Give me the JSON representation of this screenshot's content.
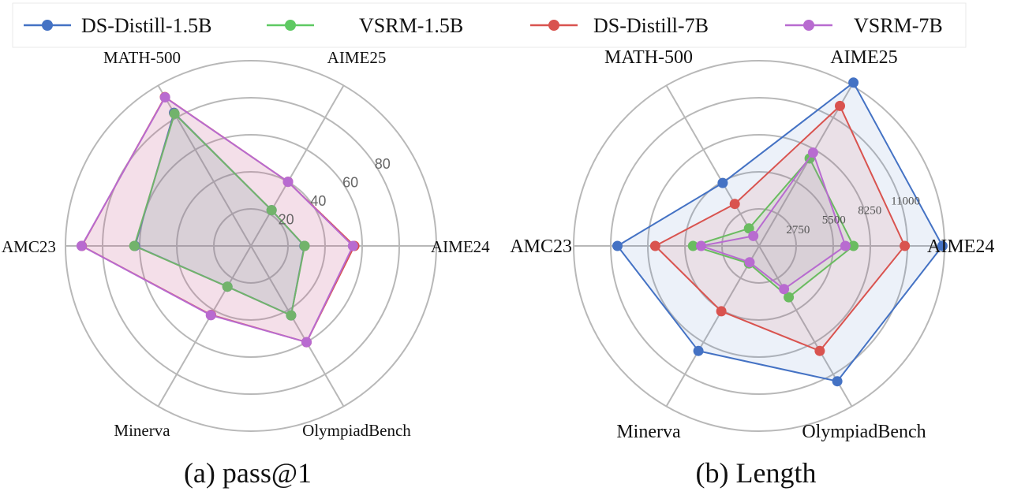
{
  "legend": [
    {
      "name": "DS-Distill-1.5B",
      "color": "#4472c4"
    },
    {
      "name": "VSRM-1.5B",
      "color": "#5ec962"
    },
    {
      "name": "DS-Distill-7B",
      "color": "#d9534f"
    },
    {
      "name": "VSRM-7B",
      "color": "#b86bd0"
    }
  ],
  "chart_data": [
    {
      "type": "radar",
      "caption": "(a) pass@1",
      "axes": [
        "AIME24",
        "AIME25",
        "MATH-500",
        "AMC23",
        "Minerva",
        "OlympiadBench"
      ],
      "r_range": [
        0,
        100
      ],
      "tick_values": [
        20,
        40,
        60,
        80
      ],
      "tick_labels": [
        "20",
        "40",
        "60",
        "80"
      ],
      "grid": true,
      "series": [
        {
          "name": "DS-Distill-1.5B",
          "color": "#4472c4",
          "values": [
            28.8,
            22.3,
            83.0,
            62.5,
            25.4,
            43.3
          ]
        },
        {
          "name": "VSRM-1.5B",
          "color": "#5ec962",
          "values": [
            29.0,
            22.3,
            82.4,
            62.9,
            25.4,
            43.3
          ]
        },
        {
          "name": "DS-Distill-7B",
          "color": "#d9534f",
          "values": [
            55.8,
            40.0,
            92.8,
            91.2,
            43.0,
            60.0
          ]
        },
        {
          "name": "VSRM-7B",
          "color": "#b86bd0",
          "values": [
            55.0,
            40.0,
            92.6,
            91.3,
            43.2,
            60.0
          ]
        }
      ]
    },
    {
      "type": "radar",
      "caption": "(b) Length",
      "axes": [
        "AIME24",
        "AIME25",
        "MATH-500",
        "AMC23",
        "Minerva",
        "OlympiadBench"
      ],
      "r_range": [
        0,
        13750
      ],
      "tick_values": [
        2750,
        5500,
        8250,
        11000
      ],
      "tick_labels": [
        "2750",
        "5500",
        "8250",
        "11000"
      ],
      "grid": true,
      "series": [
        {
          "name": "DS-Distill-1.5B",
          "color": "#4472c4",
          "values": [
            13600,
            14000,
            5400,
            10500,
            9000,
            11600
          ]
        },
        {
          "name": "VSRM-1.5B",
          "color": "#5ec962",
          "values": [
            7000,
            7500,
            1500,
            4900,
            1500,
            4400
          ]
        },
        {
          "name": "DS-Distill-7B",
          "color": "#d9534f",
          "values": [
            10800,
            12000,
            3600,
            7700,
            5600,
            9000
          ]
        },
        {
          "name": "VSRM-7B",
          "color": "#b86bd0",
          "values": [
            6400,
            8000,
            850,
            4300,
            1400,
            3700
          ]
        }
      ]
    }
  ]
}
